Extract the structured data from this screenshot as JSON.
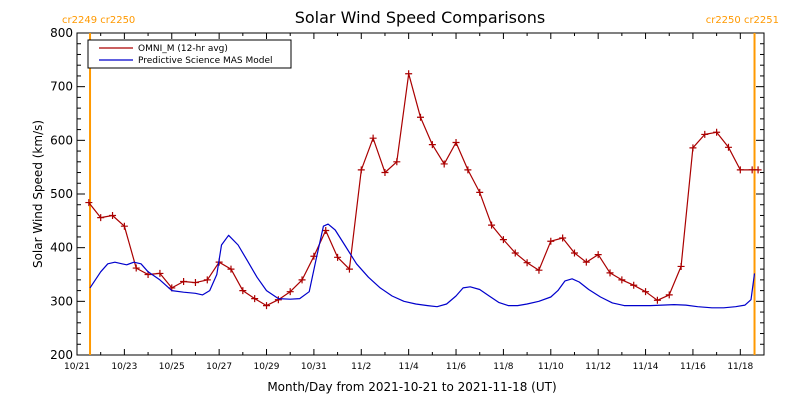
{
  "chart_data": {
    "type": "line",
    "title": "Solar Wind Speed Comparisons",
    "xlabel": "Month/Day from 2021-10-21 to 2021-11-18 (UT)",
    "ylabel": "Solar Wind Speed (km/s)",
    "ylim": [
      200,
      800
    ],
    "yticks": [
      200,
      300,
      400,
      500,
      600,
      700,
      800
    ],
    "xlim": [
      0,
      29
    ],
    "x_tick_labels": [
      "10/21",
      "10/23",
      "10/25",
      "10/27",
      "10/29",
      "10/31",
      "11/2",
      "11/4",
      "11/6",
      "11/8",
      "11/10",
      "11/12",
      "11/14",
      "11/16",
      "11/18"
    ],
    "x_tick_days": [
      0,
      2,
      4,
      6,
      8,
      10,
      12,
      14,
      16,
      18,
      20,
      22,
      24,
      26,
      28
    ],
    "legend_placement": "top-left",
    "grid": false,
    "markers": [
      {
        "x": 0.55,
        "label": "cr2249 cr2250",
        "side": "left",
        "color": "#ff9900"
      },
      {
        "x": 28.6,
        "label": "cr2250 cr2251",
        "side": "right",
        "color": "#ff9900"
      }
    ],
    "series": [
      {
        "name": "OMNI_M (12-hr avg)",
        "color": "#aa0000",
        "marker": "plus",
        "x": [
          0.5,
          1.0,
          1.5,
          2.0,
          2.5,
          3.0,
          3.5,
          4.0,
          4.5,
          5.0,
          5.5,
          6.0,
          6.5,
          7.0,
          7.5,
          8.0,
          8.5,
          9.0,
          9.5,
          10.0,
          10.5,
          11.0,
          11.5,
          12.0,
          12.5,
          13.0,
          13.5,
          14.0,
          14.5,
          15.0,
          15.5,
          16.0,
          16.5,
          17.0,
          17.5,
          18.0,
          18.5,
          19.0,
          19.5,
          20.0,
          20.5,
          21.0,
          21.5,
          22.0,
          22.5,
          23.0,
          23.5,
          24.0,
          24.5,
          25.0,
          25.5,
          26.0,
          26.5,
          27.0,
          27.5,
          28.0,
          28.5,
          28.75
        ],
        "values": [
          484,
          456,
          460,
          440,
          362,
          350,
          352,
          325,
          337,
          335,
          340,
          373,
          360,
          320,
          305,
          292,
          303,
          318,
          340,
          384,
          432,
          382,
          360,
          545,
          604,
          540,
          560,
          724,
          643,
          592,
          556,
          596,
          545,
          503,
          442,
          415,
          390,
          372,
          358,
          412,
          418,
          390,
          373,
          387,
          353,
          340,
          330,
          318,
          302,
          312,
          365,
          586,
          611,
          615,
          587,
          545,
          545,
          545
        ]
      },
      {
        "name": "Predictive Science MAS Model",
        "color": "#0000cc",
        "marker": "none",
        "x": [
          0.55,
          1.0,
          1.3,
          1.6,
          1.9,
          2.1,
          2.4,
          2.7,
          3.0,
          3.5,
          4.0,
          4.5,
          5.0,
          5.3,
          5.6,
          5.9,
          6.1,
          6.4,
          6.8,
          7.2,
          7.6,
          8.0,
          8.5,
          9.0,
          9.4,
          9.8,
          10.1,
          10.4,
          10.6,
          10.9,
          11.3,
          11.8,
          12.3,
          12.8,
          13.3,
          13.8,
          14.3,
          14.8,
          15.2,
          15.6,
          16.0,
          16.3,
          16.6,
          17.0,
          17.4,
          17.8,
          18.2,
          18.6,
          19.0,
          19.5,
          20.0,
          20.3,
          20.6,
          20.9,
          21.2,
          21.6,
          22.1,
          22.6,
          23.1,
          23.6,
          24.2,
          24.7,
          25.2,
          25.7,
          26.2,
          26.8,
          27.3,
          27.8,
          28.2,
          28.45,
          28.6
        ],
        "values": [
          325,
          355,
          370,
          373,
          370,
          368,
          373,
          370,
          355,
          340,
          320,
          317,
          315,
          312,
          320,
          350,
          405,
          423,
          405,
          375,
          345,
          320,
          305,
          304,
          305,
          318,
          380,
          440,
          444,
          433,
          405,
          370,
          345,
          325,
          310,
          300,
          295,
          292,
          290,
          295,
          310,
          325,
          327,
          322,
          310,
          298,
          292,
          292,
          295,
          300,
          308,
          320,
          338,
          342,
          336,
          322,
          308,
          297,
          292,
          292,
          292,
          293,
          294,
          293,
          290,
          288,
          288,
          290,
          293,
          303,
          352
        ]
      }
    ]
  }
}
